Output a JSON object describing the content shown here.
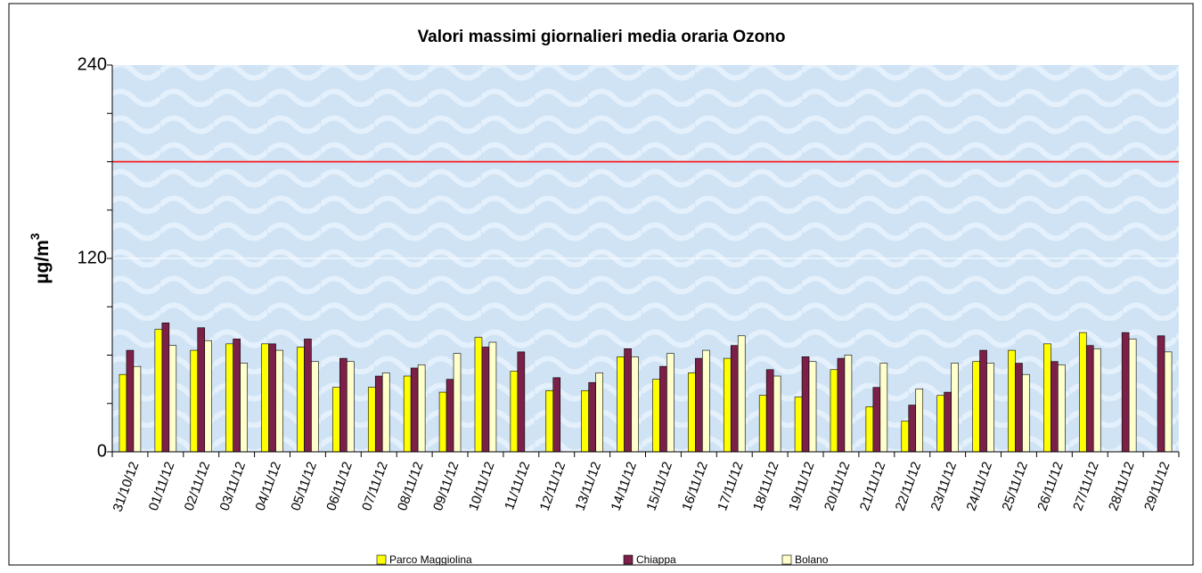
{
  "chart_data": {
    "type": "bar",
    "title": "Valori massimi giornalieri media oraria Ozono",
    "y_label": "µg/m",
    "y_label_sup": "3",
    "categories": [
      "31/10/12",
      "01/11/12",
      "02/11/12",
      "03/11/12",
      "04/11/12",
      "05/11/12",
      "06/11/12",
      "07/11/12",
      "08/11/12",
      "09/11/12",
      "10/11/12",
      "11/11/12",
      "12/11/12",
      "13/11/12",
      "14/11/12",
      "15/11/12",
      "16/11/12",
      "17/11/12",
      "18/11/12",
      "19/11/12",
      "20/11/12",
      "21/11/12",
      "22/11/12",
      "23/11/12",
      "24/11/12",
      "25/11/12",
      "26/11/12",
      "27/11/12",
      "28/11/12",
      "29/11/12"
    ],
    "series": [
      {
        "name": "Parco Maggiolina",
        "color": "#ffff00",
        "values": [
          48,
          76,
          63,
          67,
          67,
          65,
          40,
          40,
          47,
          37,
          71,
          50,
          38,
          38,
          59,
          45,
          49,
          58,
          35,
          34,
          51,
          28,
          19,
          35,
          56,
          63,
          67,
          74,
          null,
          null
        ]
      },
      {
        "name": "Chiappa",
        "color": "#7b2048",
        "values": [
          63,
          80,
          77,
          70,
          67,
          70,
          58,
          47,
          52,
          45,
          65,
          62,
          46,
          43,
          64,
          53,
          58,
          66,
          51,
          59,
          58,
          40,
          29,
          37,
          63,
          55,
          56,
          66,
          74,
          72
        ]
      },
      {
        "name": "Bolano",
        "color": "#ffffcc",
        "values": [
          53,
          66,
          69,
          55,
          63,
          56,
          56,
          49,
          54,
          61,
          68,
          null,
          null,
          49,
          59,
          61,
          63,
          72,
          47,
          56,
          60,
          55,
          39,
          55,
          55,
          48,
          54,
          64,
          70,
          62
        ]
      }
    ],
    "ylim": [
      0,
      240
    ],
    "yticks": [
      0,
      120,
      240
    ],
    "yticks_minor": [
      30,
      60,
      90,
      150,
      180,
      210
    ],
    "reference_line": {
      "value": 180,
      "color": "#ff0000"
    },
    "grid": true,
    "legend": "bottom"
  }
}
